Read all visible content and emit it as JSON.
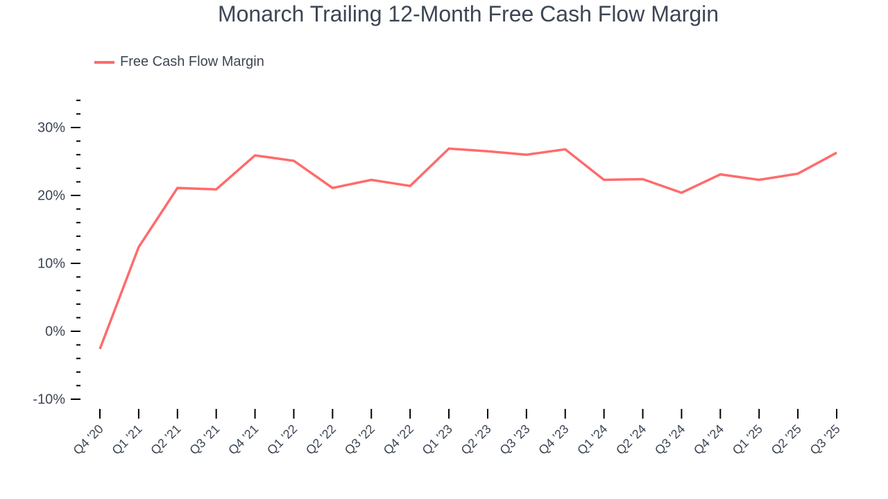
{
  "title": "Monarch Trailing 12-Month Free Cash Flow Margin",
  "legend": {
    "label": "Free Cash Flow Margin",
    "color": "#ff6b6b"
  },
  "chart_data": {
    "type": "line",
    "title": "Monarch Trailing 12-Month Free Cash Flow Margin",
    "xlabel": "",
    "ylabel": "",
    "ylim": [
      -10,
      34
    ],
    "yticks": [
      -10,
      0,
      10,
      20,
      30
    ],
    "ytick_labels": [
      "-10%",
      "0%",
      "10%",
      "20%",
      "30%"
    ],
    "grid": false,
    "legend_position": "top-left",
    "categories": [
      "Q4 '20",
      "Q1 '21",
      "Q2 '21",
      "Q3 '21",
      "Q4 '21",
      "Q1 '22",
      "Q2 '22",
      "Q3 '22",
      "Q4 '22",
      "Q1 '23",
      "Q2 '23",
      "Q3 '23",
      "Q4 '23",
      "Q1 '24",
      "Q2 '24",
      "Q3 '24",
      "Q4 '24",
      "Q1 '25",
      "Q2 '25",
      "Q3 '25"
    ],
    "series": [
      {
        "name": "Free Cash Flow Margin",
        "color": "#ff6b6b",
        "unit": "%",
        "values": [
          -2.6,
          12.4,
          21.1,
          20.9,
          25.9,
          25.1,
          21.1,
          22.3,
          21.4,
          26.9,
          26.5,
          26.0,
          26.8,
          22.3,
          22.4,
          20.4,
          23.1,
          22.3,
          23.2,
          26.3
        ]
      }
    ]
  },
  "colors": {
    "text": "#3d4654",
    "axis": "#000000",
    "line": "#ff6b6b"
  }
}
